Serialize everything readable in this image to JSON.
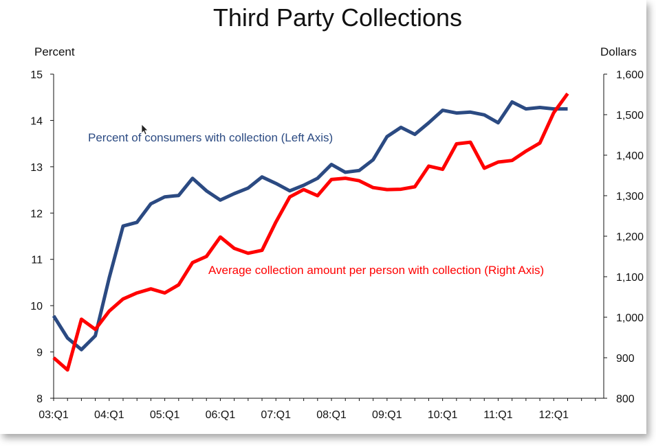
{
  "chart_data": {
    "type": "line",
    "title": "Third Party Collections",
    "left_axis": {
      "label": "Percent",
      "ylim": [
        8,
        15
      ],
      "ticks": [
        "15",
        "14",
        "13",
        "12",
        "11",
        "10",
        "9",
        "8"
      ],
      "tick_values": [
        15,
        14,
        13,
        12,
        11,
        10,
        9,
        8
      ]
    },
    "right_axis": {
      "label": "Dollars",
      "ylim": [
        800,
        1600
      ],
      "ticks": [
        "1,600",
        "1,500",
        "1,400",
        "1,300",
        "1,200",
        "1,100",
        "1,000",
        "900",
        "800"
      ],
      "tick_values": [
        1600,
        1500,
        1400,
        1300,
        1200,
        1100,
        1000,
        900,
        800
      ]
    },
    "x_tick_labels": [
      "03:Q1",
      "04:Q1",
      "05:Q1",
      "06:Q1",
      "07:Q1",
      "08:Q1",
      "09:Q1",
      "10:Q1",
      "11:Q1",
      "12:Q1"
    ],
    "x": [
      "03:Q1",
      "03:Q2",
      "03:Q3",
      "03:Q4",
      "04:Q1",
      "04:Q2",
      "04:Q3",
      "04:Q4",
      "05:Q1",
      "05:Q2",
      "05:Q3",
      "05:Q4",
      "06:Q1",
      "06:Q2",
      "06:Q3",
      "06:Q4",
      "07:Q1",
      "07:Q2",
      "07:Q3",
      "07:Q4",
      "08:Q1",
      "08:Q2",
      "08:Q3",
      "08:Q4",
      "09:Q1",
      "09:Q2",
      "09:Q3",
      "09:Q4",
      "10:Q1",
      "10:Q2",
      "10:Q3",
      "10:Q4",
      "11:Q1",
      "11:Q2",
      "11:Q3",
      "11:Q4",
      "12:Q1",
      "12:Q2"
    ],
    "series": [
      {
        "name": "Percent of consumers with collection (Left Axis)",
        "axis": "left",
        "color": "#2b4a82",
        "values": [
          9.78,
          9.3,
          9.05,
          9.35,
          10.6,
          11.72,
          11.8,
          12.2,
          12.35,
          12.38,
          12.75,
          12.48,
          12.28,
          12.42,
          12.54,
          12.78,
          12.64,
          12.48,
          12.6,
          12.75,
          13.05,
          12.88,
          12.92,
          13.15,
          13.65,
          13.85,
          13.7,
          13.95,
          14.22,
          14.16,
          14.18,
          14.12,
          13.95,
          14.4,
          14.25,
          14.28,
          14.25,
          14.25
        ]
      },
      {
        "name": "Average collection amount per person with collection (Right Axis)",
        "axis": "right",
        "color": "#ff0000",
        "values": [
          900,
          870,
          995,
          970,
          1015,
          1045,
          1060,
          1070,
          1060,
          1080,
          1135,
          1150,
          1198,
          1170,
          1158,
          1165,
          1235,
          1297,
          1315,
          1300,
          1340,
          1343,
          1337,
          1320,
          1315,
          1316,
          1322,
          1373,
          1365,
          1428,
          1432,
          1368,
          1383,
          1387,
          1410,
          1430,
          1505,
          1552
        ]
      }
    ]
  }
}
